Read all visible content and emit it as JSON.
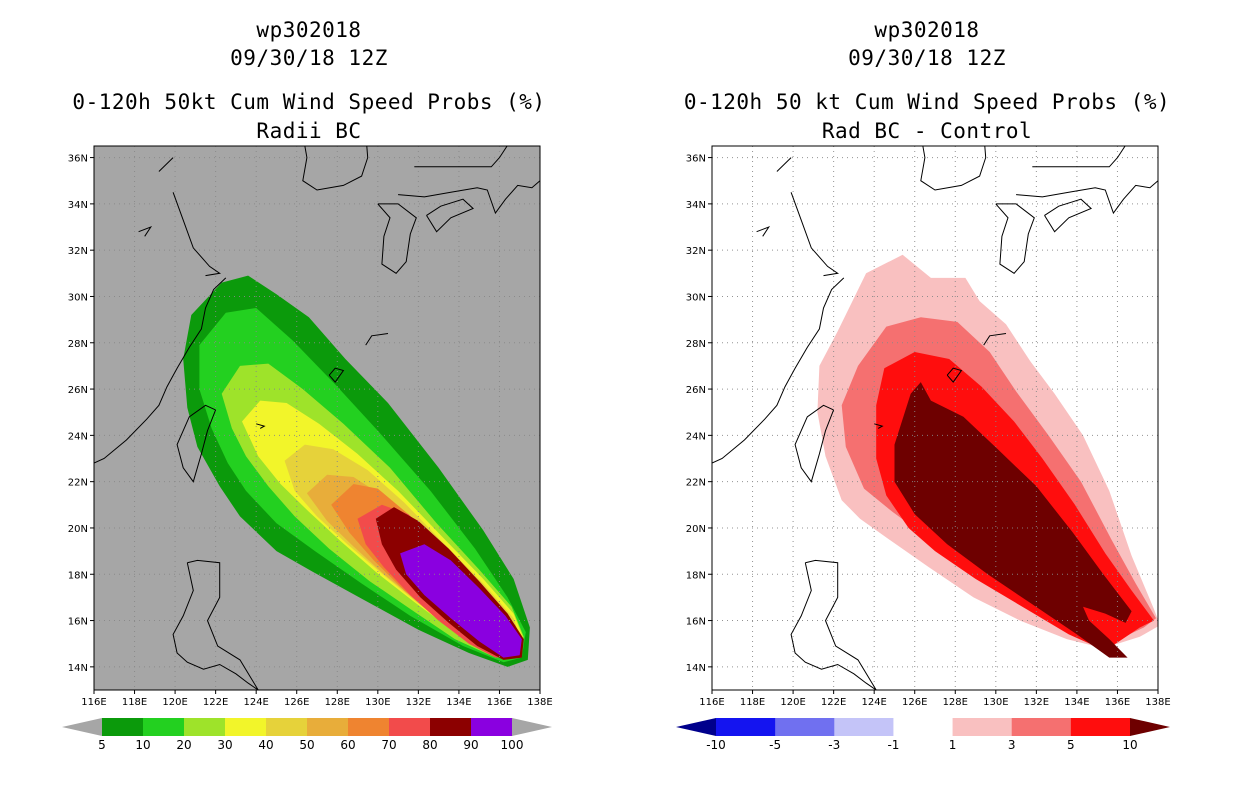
{
  "colors": {
    "ocean_left": "#a6a6a6",
    "ocean_right": "#ffffff",
    "coast": "#000000",
    "grid": "#888888"
  },
  "axes": {
    "lon_labels": [
      "116E",
      "118E",
      "120E",
      "122E",
      "124E",
      "126E",
      "128E",
      "130E",
      "132E",
      "134E",
      "136E",
      "138E"
    ],
    "lat_labels": [
      "14N",
      "16N",
      "18N",
      "20N",
      "22N",
      "24N",
      "26N",
      "28N",
      "30N",
      "32N",
      "34N",
      "36N"
    ]
  },
  "panels": {
    "left": {
      "title_line1": "wp302018",
      "title_line2": "09/30/18 12Z",
      "title_line3": "0-120h 50kt Cum Wind Speed Probs (%)",
      "title_line4": "Radii BC",
      "legend": {
        "labels": [
          "5",
          "10",
          "20",
          "30",
          "40",
          "50",
          "60",
          "70",
          "80",
          "90",
          "100"
        ],
        "colors": [
          "#a6a6a6",
          "#0b9a0b",
          "#23d020",
          "#9ee32a",
          "#f2f52a",
          "#e6d23a",
          "#e8ad3a",
          "#ef8430",
          "#f24b4b",
          "#8c0000",
          "#8a00e0",
          "#a6a6a6"
        ]
      },
      "contours": [
        {
          "level": "5",
          "color": "#0b9a0b"
        },
        {
          "level": "10",
          "color": "#23d020"
        },
        {
          "level": "20",
          "color": "#9ee32a"
        },
        {
          "level": "30",
          "color": "#f2f52a"
        },
        {
          "level": "40",
          "color": "#e6d23a"
        },
        {
          "level": "50",
          "color": "#e8ad3a"
        },
        {
          "level": "60",
          "color": "#ef8430"
        },
        {
          "level": "70",
          "color": "#f24b4b"
        },
        {
          "level": "80",
          "color": "#8c0000"
        },
        {
          "level": "90",
          "color": "#8a00e0"
        }
      ]
    },
    "right": {
      "title_line1": "wp302018",
      "title_line2": "09/30/18 12Z",
      "title_line3": "0-120h 50 kt Cum Wind Speed Probs (%)",
      "title_line4": "Rad BC - Control",
      "legend": {
        "labels": [
          "-10",
          "-5",
          "-3",
          "-1",
          "1",
          "3",
          "5",
          "10"
        ],
        "colors": [
          "#00008c",
          "#1414f0",
          "#7070f0",
          "#c4c4f8",
          "#ffffff",
          "#f9c0c0",
          "#f57070",
          "#ff0d0d",
          "#6e0000"
        ]
      },
      "contours": [
        {
          "level": "1",
          "color": "#f9c0c0"
        },
        {
          "level": "3",
          "color": "#f57070"
        },
        {
          "level": "5",
          "color": "#ff0d0d"
        },
        {
          "level": "10",
          "color": "#6e0000"
        }
      ]
    }
  }
}
